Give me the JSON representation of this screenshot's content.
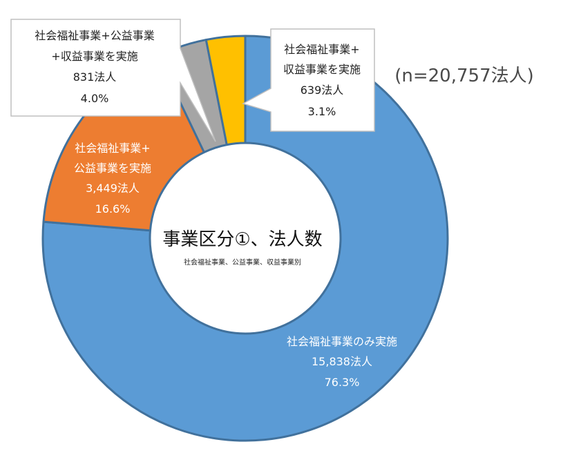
{
  "chart_data": {
    "type": "pie",
    "variant": "donut",
    "title": "事業区分①、法人数",
    "subtitle": "社会福祉事業、公益事業、収益事業別",
    "total_label": "(n=20,757法人)",
    "slices": [
      {
        "label_lines": [
          "社会福祉事業のみ実施"
        ],
        "count_text": "15,838法人",
        "pct_text": "76.3%",
        "value": 76.3,
        "color": "#5B9BD5",
        "label_style": "inside"
      },
      {
        "label_lines": [
          "社会福祉事業+",
          "公益事業を実施"
        ],
        "count_text": "3,449法人",
        "pct_text": "16.6%",
        "value": 16.6,
        "color": "#ED7D31",
        "label_style": "inside"
      },
      {
        "label_lines": [
          "社会福祉事業+公益事業",
          "+収益事業を実施"
        ],
        "count_text": "831法人",
        "pct_text": "4.0%",
        "value": 4.0,
        "color": "#A5A5A5",
        "label_style": "callout-left"
      },
      {
        "label_lines": [
          "社会福祉事業+",
          "収益事業を実施"
        ],
        "count_text": "639法人",
        "pct_text": "3.1%",
        "value": 3.1,
        "color": "#FFC000",
        "label_style": "callout-right"
      }
    ]
  }
}
